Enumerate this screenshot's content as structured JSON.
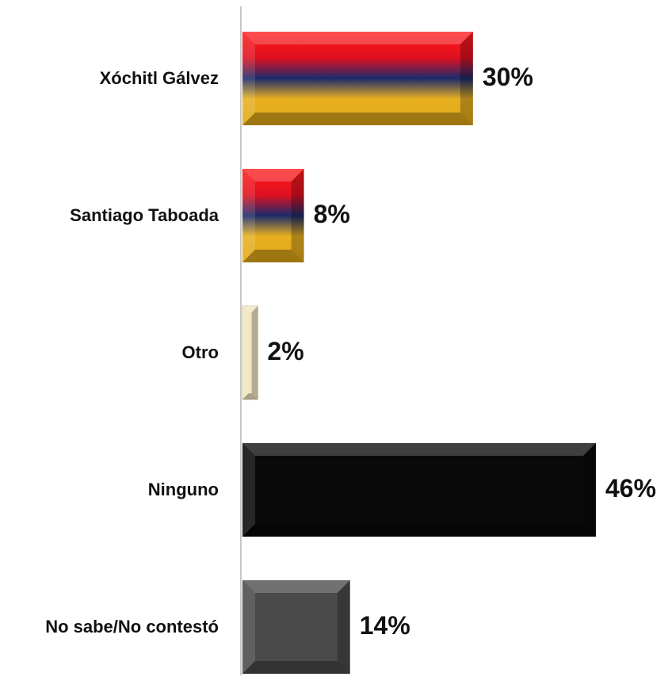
{
  "chart_data": {
    "type": "bar",
    "orientation": "horizontal",
    "title": "",
    "xlabel": "",
    "ylabel": "",
    "grid": false,
    "legend": "none",
    "xlim": [
      0,
      46
    ],
    "categories": [
      "Xóchitl Gálvez",
      "Santiago Taboada",
      "Otro",
      "Ninguno",
      "No sabe/No contestó"
    ],
    "values": [
      30,
      8,
      2,
      46,
      14
    ],
    "value_labels": [
      "30%",
      "8%",
      "2%",
      "46%",
      "14%"
    ],
    "bar_styles": [
      "tricolor",
      "tricolor",
      "cream",
      "black",
      "gray"
    ]
  },
  "colors": {
    "tricolor_top": "#ff1a1a",
    "tricolor_mid": "#1c2a6b",
    "tricolor_bottom": "#e8b020",
    "cream": "#f1e6c0",
    "black": "#0a0a0a",
    "gray": "#4a4a4a",
    "axis": "#c8c8c8"
  }
}
